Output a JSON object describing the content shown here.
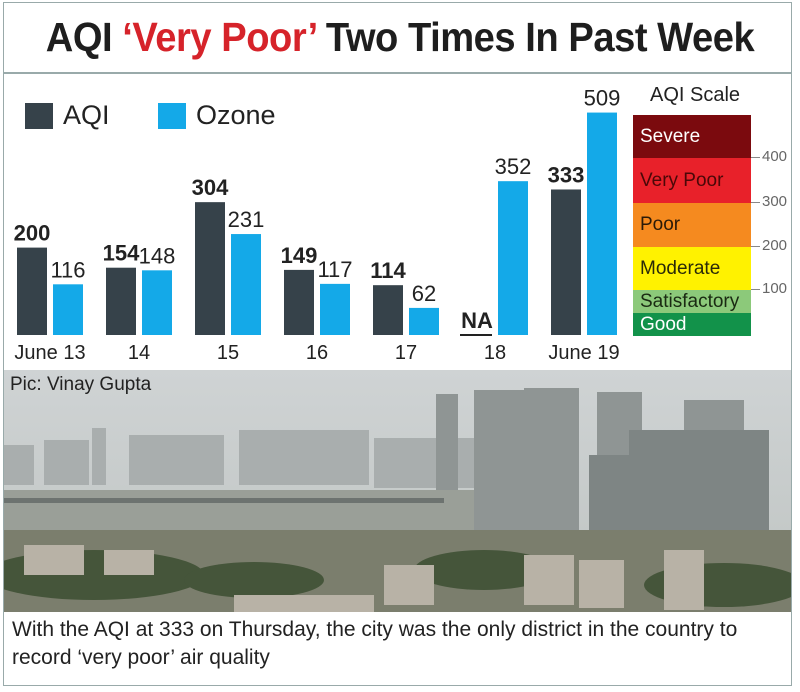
{
  "title": {
    "prefix": "AQI ",
    "highlight": "‘Very Poor’",
    "suffix": " Two Times In Past Week"
  },
  "chart_data": {
    "type": "bar",
    "categories": [
      "June 13",
      "14",
      "15",
      "16",
      "17",
      "18",
      "June 19"
    ],
    "series": [
      {
        "name": "AQI",
        "color": "#36424a",
        "values": [
          200,
          154,
          304,
          149,
          114,
          null,
          333
        ],
        "labels": [
          "200",
          "154",
          "304",
          "149",
          "114",
          "NA",
          "333"
        ]
      },
      {
        "name": "Ozone",
        "color": "#14a9e8",
        "values": [
          116,
          148,
          231,
          117,
          62,
          352,
          509
        ],
        "labels": [
          "116",
          "148",
          "231",
          "117",
          "62",
          "352",
          "509"
        ]
      }
    ],
    "legend": "top-left"
  },
  "aqi_scale": {
    "title": "AQI Scale",
    "bands": [
      {
        "label": "Severe",
        "color": "#7b0a0e",
        "text": "#ffffff"
      },
      {
        "label": "Very Poor",
        "color": "#e8212a",
        "text": "#4a0808"
      },
      {
        "label": "Poor",
        "color": "#f58a1f",
        "text": "#2a1a08"
      },
      {
        "label": "Moderate",
        "color": "#fff200",
        "text": "#2a2a08"
      },
      {
        "label": "Satisfactory",
        "color": "#8cc97a",
        "text": "#1a2a12"
      },
      {
        "label": "Good",
        "color": "#12924a",
        "text": "#ffffff"
      }
    ],
    "ticks": [
      "400",
      "300",
      "200",
      "100"
    ]
  },
  "photo": {
    "credit": "Pic: Vinay Gupta"
  },
  "caption": "With the AQI at 333 on Thursday, the city was the only district in the country to record ‘very poor’ air quality"
}
